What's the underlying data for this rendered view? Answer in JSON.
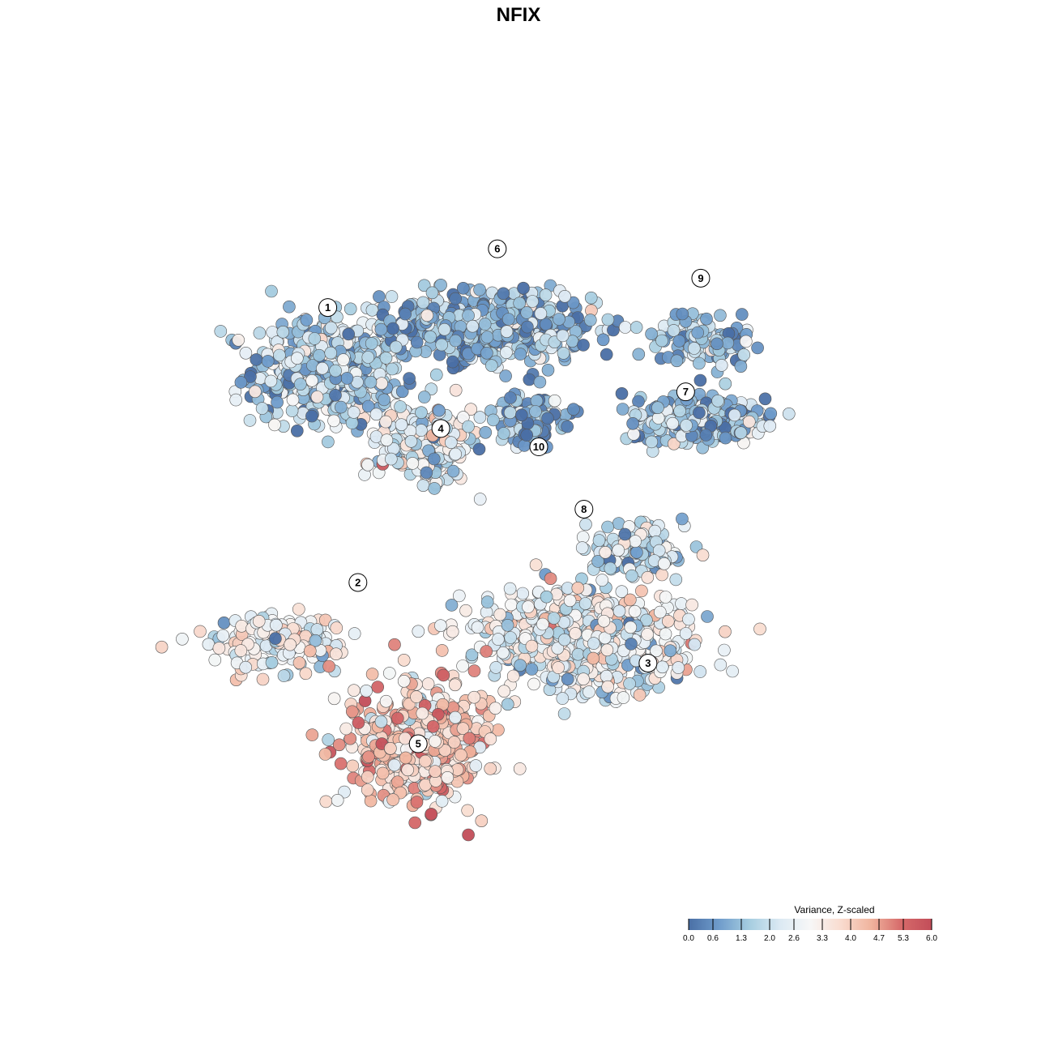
{
  "chart_data": {
    "type": "scatter",
    "title": "NFIX",
    "xlabel": "",
    "ylabel": "",
    "grid": false,
    "legend_placement": "bottom-right",
    "legend": {
      "title": "Variance, Z-scaled",
      "min": 0.0,
      "max": 6.0,
      "ticks": [
        "0.0",
        "0.6",
        "1.3",
        "2.0",
        "2.6",
        "3.3",
        "4.0",
        "4.7",
        "5.3",
        "6.0"
      ],
      "colormap": [
        "#4a6fa5",
        "#6f9ccb",
        "#a6cde0",
        "#dbe9f3",
        "#f7f7f7",
        "#f9dcd0",
        "#f0b49e",
        "#d66a6a",
        "#c24d59"
      ]
    },
    "xlim": [
      0,
      100
    ],
    "ylim": [
      0,
      100
    ],
    "clusters": [
      {
        "label": "1",
        "x": 22.0,
        "y": 70.0,
        "spread": [
          9,
          6.5
        ],
        "count": 520,
        "mean": 1.6
      },
      {
        "label": "6",
        "x": 44.0,
        "y": 76.0,
        "spread": [
          12,
          4.5
        ],
        "count": 520,
        "mean": 1.2
      },
      {
        "label": "9",
        "x": 72.0,
        "y": 74.0,
        "spread": [
          6,
          2.6
        ],
        "count": 120,
        "mean": 1.3
      },
      {
        "label": "7",
        "x": 71.0,
        "y": 63.5,
        "spread": [
          9,
          3.2
        ],
        "count": 230,
        "mean": 1.3
      },
      {
        "label": "4",
        "x": 35.0,
        "y": 60.0,
        "spread": [
          5.5,
          4.5
        ],
        "count": 260,
        "mean": 2.4
      },
      {
        "label": "10",
        "x": 49.0,
        "y": 63.0,
        "spread": [
          5,
          3.2
        ],
        "count": 110,
        "mean": 0.9
      },
      {
        "label": "8",
        "x": 63.0,
        "y": 45.0,
        "spread": [
          6,
          3
        ],
        "count": 150,
        "mean": 1.9
      },
      {
        "label": "2",
        "x": 15.0,
        "y": 33.0,
        "spread": [
          8,
          3.2
        ],
        "count": 170,
        "mean": 2.8
      },
      {
        "label": "3",
        "x": 56.0,
        "y": 33.5,
        "spread": [
          13,
          6
        ],
        "count": 650,
        "mean": 2.6
      },
      {
        "label": "5",
        "x": 34.0,
        "y": 19.0,
        "spread": [
          8,
          7
        ],
        "count": 540,
        "mean": 4.1
      }
    ],
    "label_positions": [
      {
        "label": "1",
        "x": 22.0,
        "y": 78.5
      },
      {
        "label": "6",
        "x": 44.5,
        "y": 86.5
      },
      {
        "label": "9",
        "x": 71.5,
        "y": 82.5
      },
      {
        "label": "7",
        "x": 69.5,
        "y": 67.0
      },
      {
        "label": "4",
        "x": 37.0,
        "y": 62.0
      },
      {
        "label": "10",
        "x": 50.0,
        "y": 59.5
      },
      {
        "label": "8",
        "x": 56.0,
        "y": 51.0
      },
      {
        "label": "2",
        "x": 26.0,
        "y": 41.0
      },
      {
        "label": "3",
        "x": 64.5,
        "y": 30.0
      },
      {
        "label": "5",
        "x": 34.0,
        "y": 19.0
      }
    ]
  }
}
